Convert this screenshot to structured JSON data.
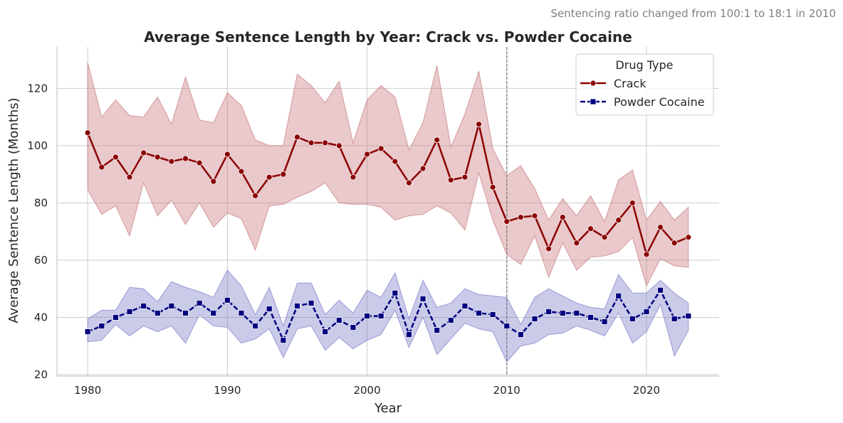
{
  "chart_data": {
    "type": "line",
    "title": "Average Sentence Length by Year: Crack vs. Powder Cocaine",
    "annotation": "Sentencing ratio changed from 100:1 to 18:1 in 2010",
    "xlabel": "Year",
    "ylabel": "Average Sentence Length (Months)",
    "xlim": [
      1977.8,
      2025.2
    ],
    "ylim": [
      19.5,
      134.5
    ],
    "xticks": [
      1980,
      1990,
      2000,
      2010,
      2020
    ],
    "yticks": [
      20,
      40,
      60,
      80,
      100,
      120
    ],
    "grid": true,
    "reference_line_x": 2010,
    "legend": {
      "title": "Drug Type",
      "placement": "top-right",
      "entries": [
        "Crack",
        "Powder Cocaine"
      ]
    },
    "x": [
      1980,
      1981,
      1982,
      1983,
      1984,
      1985,
      1986,
      1987,
      1988,
      1989,
      1990,
      1991,
      1992,
      1993,
      1994,
      1995,
      1996,
      1997,
      1998,
      1999,
      2000,
      2001,
      2002,
      2003,
      2004,
      2005,
      2006,
      2007,
      2008,
      2009,
      2010,
      2011,
      2012,
      2013,
      2014,
      2015,
      2016,
      2017,
      2018,
      2019,
      2020,
      2021,
      2022,
      2023
    ],
    "series": [
      {
        "name": "Crack",
        "color": "#8b0000",
        "band_color": "#c9787c",
        "marker": "circle",
        "line_style": "solid",
        "values": [
          104.5,
          92.5,
          96,
          89,
          97.5,
          96,
          94.5,
          95.5,
          94,
          87.5,
          97,
          91,
          82.5,
          89,
          90,
          103,
          101,
          101,
          100,
          89,
          97,
          99,
          94.5,
          87,
          92,
          102,
          88,
          89,
          107.5,
          85.5,
          73.5,
          75,
          75.5,
          64,
          75,
          66,
          71,
          68,
          74,
          80,
          62,
          71.5,
          66,
          68
        ],
        "ci_upper": [
          129,
          110,
          116,
          110.5,
          110,
          117,
          107.5,
          124,
          109,
          108,
          118.5,
          114,
          102,
          100,
          100,
          125,
          121,
          115,
          122.5,
          101,
          116,
          121,
          117,
          98.5,
          108,
          128,
          99.5,
          111,
          126,
          99,
          89.5,
          93,
          85,
          74,
          81.5,
          75.5,
          82.5,
          73.5,
          88,
          91.5,
          74,
          80.5,
          74,
          78.5
        ],
        "ci_lower": [
          84.5,
          76,
          79,
          68.5,
          87,
          75.5,
          81,
          72.5,
          80,
          71.5,
          76.5,
          74.5,
          63.5,
          79,
          79.5,
          82,
          84,
          87,
          80,
          79.5,
          79.5,
          78.5,
          74,
          75.5,
          76,
          79,
          76.5,
          70.5,
          90.5,
          74,
          62,
          58.5,
          68.5,
          54,
          66,
          56.5,
          61,
          61.5,
          63,
          68,
          51,
          60.5,
          58,
          57.5
        ]
      },
      {
        "name": "Powder Cocaine",
        "color": "#000080",
        "band_color": "#7b7bc9",
        "marker": "square",
        "line_style": "dashed",
        "values": [
          35,
          37,
          40,
          42,
          44,
          41.5,
          44,
          41.5,
          45,
          41.5,
          46,
          41.5,
          37,
          43,
          32,
          44,
          45,
          35,
          39,
          36.5,
          40.5,
          40.5,
          48.5,
          34,
          46.5,
          35.5,
          39,
          44,
          41.5,
          41,
          37,
          34,
          39.5,
          42,
          41.5,
          41.5,
          40,
          38.5,
          47.5,
          39.5,
          42,
          49.5,
          39.5,
          40.5
        ],
        "ci_upper": [
          39.5,
          42.5,
          42.5,
          50.5,
          50,
          45.5,
          52.5,
          50.5,
          49,
          47,
          56.5,
          51,
          41,
          50.5,
          37,
          52,
          52,
          41,
          46,
          41.5,
          49.5,
          47,
          55.5,
          39.5,
          53,
          43.5,
          45,
          50,
          48,
          47.5,
          47,
          37.5,
          47,
          50,
          47.5,
          45,
          43.5,
          43,
          55,
          48.5,
          48.5,
          53,
          48.5,
          45
        ],
        "ci_lower": [
          31.5,
          32,
          37.5,
          33.5,
          37,
          35,
          37,
          31,
          41,
          37,
          36.5,
          31,
          32.5,
          36,
          26,
          36,
          37,
          28.5,
          33,
          29,
          32,
          34,
          42.5,
          29.5,
          40,
          27,
          32.5,
          38,
          36,
          35,
          24.5,
          30,
          31,
          34,
          34.5,
          37,
          35.5,
          33.5,
          41.5,
          31,
          35,
          44.5,
          26.5,
          35.5
        ]
      }
    ]
  }
}
